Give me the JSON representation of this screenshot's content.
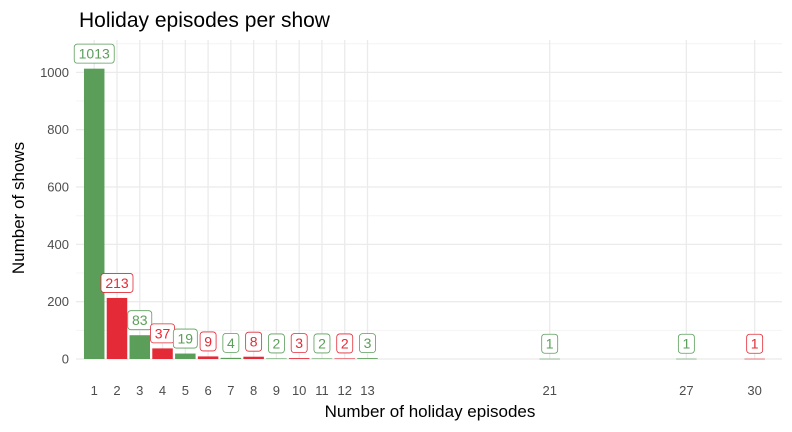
{
  "chart_data": {
    "type": "bar",
    "title": "Holiday episodes per show",
    "xlabel": "Number of holiday episodes",
    "ylabel": "Number of shows",
    "x": [
      1,
      2,
      3,
      4,
      5,
      6,
      7,
      8,
      9,
      10,
      11,
      12,
      13,
      21,
      27,
      30
    ],
    "values": [
      1013,
      213,
      83,
      37,
      19,
      9,
      4,
      8,
      2,
      3,
      2,
      2,
      3,
      1,
      1,
      1
    ],
    "bar_colors": [
      "green",
      "red",
      "green",
      "red",
      "green",
      "red",
      "green",
      "red",
      "green",
      "red",
      "green",
      "red",
      "green",
      "green",
      "green",
      "red"
    ],
    "colors": {
      "green": "#5b9e5a",
      "red": "#e32a36"
    },
    "ylim": [
      0,
      1113
    ],
    "xlim": [
      0.2,
      31.2
    ],
    "yticks": [
      0,
      200,
      400,
      600,
      800,
      1000
    ],
    "xticks": [
      1,
      2,
      3,
      4,
      5,
      6,
      7,
      8,
      9,
      10,
      11,
      12,
      13,
      21,
      27,
      30
    ],
    "grid": true,
    "legend": "none"
  }
}
